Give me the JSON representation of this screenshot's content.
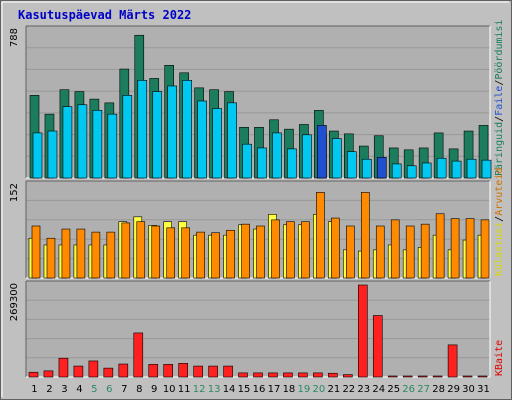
{
  "title": "Kasutuspäevad Märts 2022",
  "colors": {
    "background": "#c0c0c0",
    "panel": "#b0b0b0",
    "grid": "#989898",
    "title": "#0000c8",
    "weekday": "#000000",
    "weekend": "#2a8a63",
    "pageviews": "#1b7d5e",
    "files": "#00c8f0",
    "first_visits": "#2050d0",
    "visits": "#ffff40",
    "sites": "#ff8a00",
    "kbytes": "#ff2020",
    "legend_pageviews": "#1b7d5e",
    "legend_files": "#2050d0",
    "legend_visits": "#d8d800",
    "legend_sites": "#d07000",
    "legend_kbytes": "#e00000"
  },
  "legend": {
    "top": [
      "Päringuid",
      "Faile",
      "Pöördumisi"
    ],
    "middle": [
      "Külastusi",
      "Arvuteid"
    ],
    "bottom": [
      "KBaite"
    ],
    "separator": "/"
  },
  "chart_data": [
    {
      "type": "bar",
      "panel": "top",
      "axis_max_label": "788",
      "ylim": [
        0,
        788
      ],
      "categories": [
        "1",
        "2",
        "3",
        "4",
        "5",
        "6",
        "7",
        "8",
        "9",
        "10",
        "11",
        "12",
        "13",
        "14",
        "15",
        "16",
        "17",
        "18",
        "19",
        "20",
        "21",
        "22",
        "23",
        "24",
        "25",
        "26",
        "27",
        "28",
        "29",
        "30",
        "31"
      ],
      "weekend_days": [
        "5",
        "6",
        "12",
        "13",
        "19",
        "20",
        "26",
        "27"
      ],
      "series": [
        {
          "name": "Päringuid",
          "values": [
            440,
            340,
            470,
            460,
            420,
            400,
            580,
            760,
            530,
            600,
            560,
            480,
            470,
            460,
            270,
            270,
            310,
            260,
            285,
            360,
            250,
            235,
            170,
            225,
            160,
            150,
            160,
            240,
            155,
            250,
            280
          ]
        },
        {
          "name": "Faile",
          "values": [
            240,
            250,
            380,
            390,
            360,
            340,
            440,
            520,
            460,
            490,
            520,
            410,
            370,
            400,
            180,
            160,
            240,
            155,
            230,
            230,
            210,
            140,
            100,
            110,
            75,
            65,
            80,
            105,
            90,
            100,
            95
          ]
        },
        {
          "name": "Pöördumisi",
          "values": [
            0,
            0,
            0,
            0,
            0,
            0,
            0,
            0,
            0,
            0,
            0,
            0,
            0,
            0,
            0,
            0,
            0,
            0,
            0,
            280,
            0,
            0,
            0,
            110,
            0,
            0,
            0,
            0,
            0,
            0,
            0
          ]
        }
      ]
    },
    {
      "type": "bar",
      "panel": "middle",
      "axis_max_label": "152",
      "ylim": [
        0,
        152
      ],
      "categories": [
        "1",
        "2",
        "3",
        "4",
        "5",
        "6",
        "7",
        "8",
        "9",
        "10",
        "11",
        "12",
        "13",
        "14",
        "15",
        "16",
        "17",
        "18",
        "19",
        "20",
        "21",
        "22",
        "23",
        "24",
        "25",
        "26",
        "27",
        "28",
        "29",
        "30",
        "31"
      ],
      "series": [
        {
          "name": "Külastusi",
          "values": [
            65,
            54,
            54,
            54,
            54,
            54,
            92,
            100,
            86,
            92,
            92,
            70,
            70,
            70,
            87,
            80,
            104,
            87,
            87,
            104,
            92,
            46,
            44,
            46,
            54,
            46,
            50,
            70,
            46,
            62,
            70
          ]
        },
        {
          "name": "Arvuteid",
          "values": [
            85,
            65,
            80,
            80,
            75,
            75,
            90,
            92,
            85,
            82,
            82,
            75,
            74,
            78,
            88,
            85,
            95,
            92,
            92,
            140,
            98,
            85,
            140,
            85,
            95,
            85,
            88,
            105,
            97,
            97,
            95
          ]
        }
      ]
    },
    {
      "type": "bar",
      "panel": "bottom",
      "axis_max_label": "269300",
      "ylim": [
        0,
        269300
      ],
      "categories": [
        "1",
        "2",
        "3",
        "4",
        "5",
        "6",
        "7",
        "8",
        "9",
        "10",
        "11",
        "12",
        "13",
        "14",
        "15",
        "16",
        "17",
        "18",
        "19",
        "20",
        "21",
        "22",
        "23",
        "24",
        "25",
        "26",
        "27",
        "28",
        "29",
        "30",
        "31"
      ],
      "series": [
        {
          "name": "KBaite",
          "values": [
            14000,
            18000,
            55000,
            32000,
            47000,
            26000,
            38000,
            129000,
            37000,
            37000,
            40000,
            32000,
            32000,
            32000,
            12000,
            12000,
            12000,
            12000,
            12000,
            12000,
            11000,
            7000,
            269300,
            180000,
            3000,
            3000,
            3000,
            3000,
            94000,
            3000,
            3000
          ]
        }
      ]
    }
  ]
}
